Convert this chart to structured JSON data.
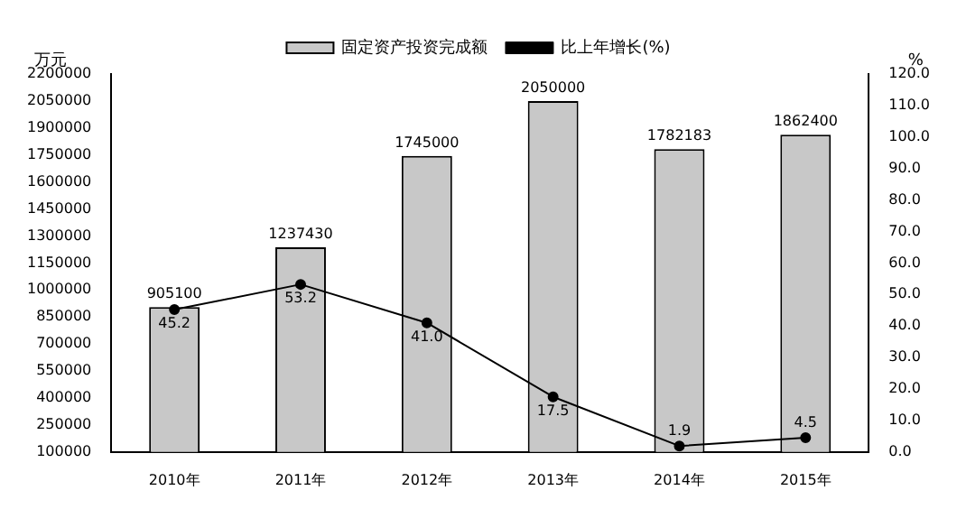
{
  "chart_data": {
    "type": "bar",
    "categories": [
      "2010年",
      "2011年",
      "2012年",
      "2013年",
      "2014年",
      "2015年"
    ],
    "series": [
      {
        "name": "固定资产投资完成额",
        "color": "#c8c8c8",
        "values": [
          905100,
          1237430,
          1745000,
          2050000,
          1782183,
          1862400
        ]
      },
      {
        "name": "比上年增长(%)",
        "type": "line",
        "axis": "y2",
        "color": "#000000",
        "values": [
          45.2,
          53.2,
          41.0,
          17.5,
          1.9,
          4.5
        ],
        "value_labels": [
          "45.2",
          "53.2",
          "41.0",
          "17.5",
          "1.9",
          "4.5"
        ]
      }
    ],
    "ylabel": "万元",
    "y2label": "%",
    "ylim": [
      100000,
      2200000
    ],
    "yticks": [
      100000,
      250000,
      400000,
      550000,
      700000,
      850000,
      1000000,
      1150000,
      1300000,
      1450000,
      1600000,
      1750000,
      1900000,
      2050000,
      2200000
    ],
    "y2lim": [
      0,
      120
    ],
    "y2ticks": [
      {
        "value": 0,
        "label": "0.0"
      },
      {
        "value": 10,
        "label": "10.0"
      },
      {
        "value": 20,
        "label": "20.0"
      },
      {
        "value": 30,
        "label": "30.0"
      },
      {
        "value": 40,
        "label": "40.0"
      },
      {
        "value": 50,
        "label": "50.0"
      },
      {
        "value": 60,
        "label": "60.0"
      },
      {
        "value": 70,
        "label": "70.0"
      },
      {
        "value": 80,
        "label": "80.0"
      },
      {
        "value": 90,
        "label": "90.0"
      },
      {
        "value": 100,
        "label": "100.0"
      },
      {
        "value": 110,
        "label": "110.0"
      },
      {
        "value": 120,
        "label": "120.0"
      }
    ],
    "data_labels": true,
    "grid": false,
    "legend": "top",
    "marker": "circle",
    "line_style": "solid"
  }
}
